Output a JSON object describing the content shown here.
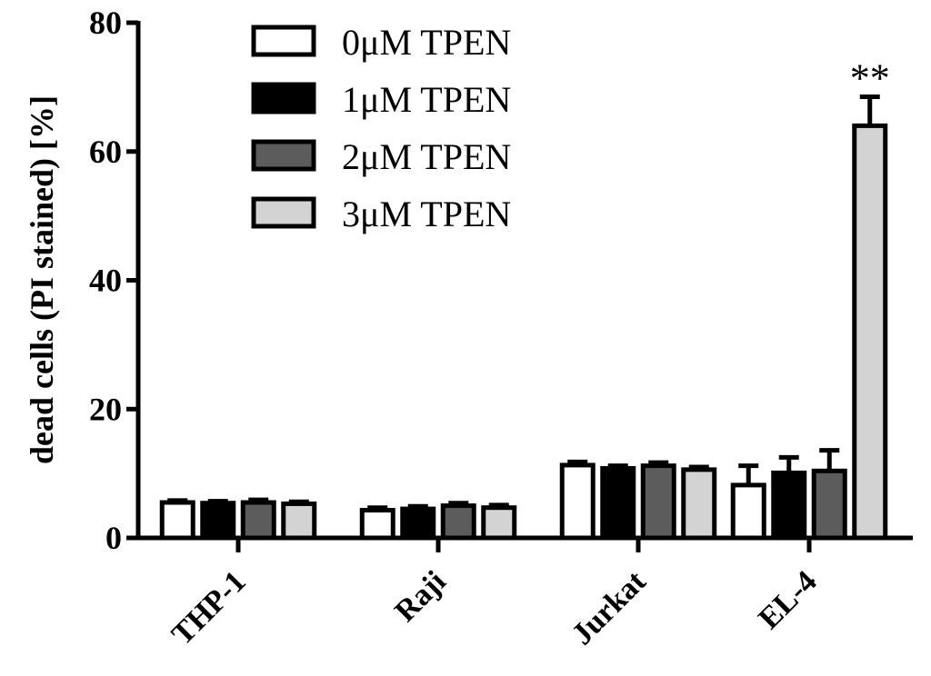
{
  "chart_data": {
    "type": "bar",
    "title": "",
    "xlabel": "",
    "ylabel": "dead cells (PI stained) [%]",
    "ylim": [
      0,
      80
    ],
    "yticks": [
      0,
      20,
      40,
      60,
      80
    ],
    "categories": [
      "THP-1",
      "Raji",
      "Jurkat",
      "EL-4"
    ],
    "legend_position": "top-center",
    "grid": false,
    "series": [
      {
        "name": "0μM TPEN",
        "color": "#ffffff",
        "values": [
          5.5,
          4.3,
          11.3,
          8.2
        ],
        "errors": [
          0.3,
          0.4,
          0.5,
          3.0
        ]
      },
      {
        "name": "1μM TPEN",
        "color": "#000000",
        "values": [
          5.4,
          4.5,
          10.8,
          10.1
        ],
        "errors": [
          0.3,
          0.4,
          0.4,
          2.4
        ]
      },
      {
        "name": "2μM TPEN",
        "color": "#5c5c5c",
        "values": [
          5.5,
          5.0,
          11.2,
          10.4
        ],
        "errors": [
          0.4,
          0.4,
          0.5,
          3.2
        ]
      },
      {
        "name": "3μM TPEN",
        "color": "#d3d3d3",
        "values": [
          5.3,
          4.7,
          10.6,
          64.0
        ],
        "errors": [
          0.3,
          0.4,
          0.4,
          4.5
        ]
      }
    ],
    "annotations": [
      {
        "text": "**",
        "category": "EL-4",
        "series": "3μM TPEN"
      }
    ]
  }
}
